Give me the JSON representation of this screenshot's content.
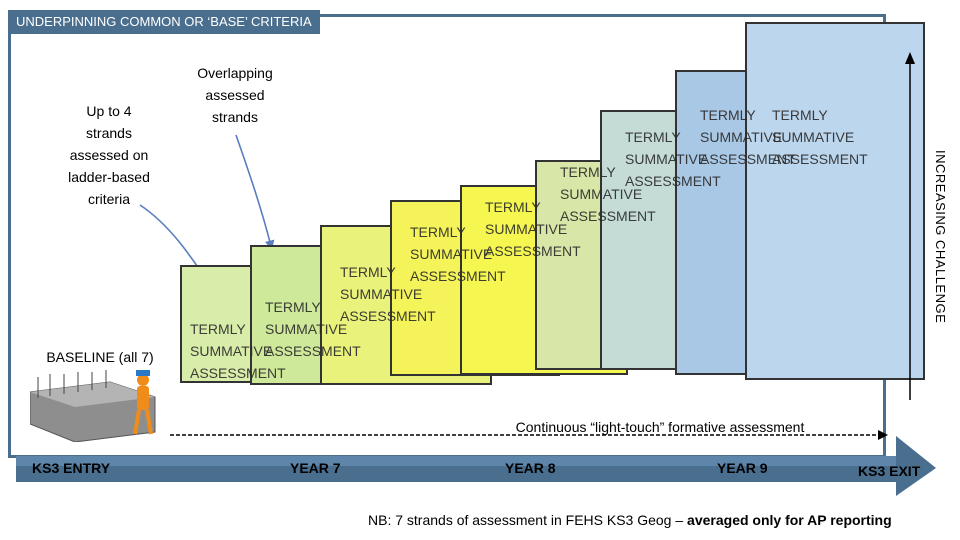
{
  "header": {
    "title": "UNDERPINNING COMMON OR ‘BASE’ CRITERIA"
  },
  "annotations": {
    "left_note_lines": [
      "Up to 4",
      "strands",
      "assessed on",
      "ladder-based",
      "criteria"
    ],
    "overlap_note_lines": [
      "Overlapping",
      "assessed",
      "strands"
    ],
    "baseline": "BASELINE (all 7)",
    "formative": "Continuous “light-touch” formative assessment",
    "challenge_axis": "INCREASING CHALLENGE"
  },
  "panel_text": {
    "line1": "TERMLY",
    "line2": "SUMMATIVE",
    "line3": "ASSESSMENT"
  },
  "panels": [
    {
      "color": "#d9edaa"
    },
    {
      "color": "#cfe99a"
    },
    {
      "color": "#e9f27a"
    },
    {
      "color": "#f4f45a"
    },
    {
      "color": "#f6f650"
    },
    {
      "color": "#d8e7a8"
    },
    {
      "color": "#c5dcd6"
    },
    {
      "color": "#a9c8e6"
    },
    {
      "color": "#bcd6ee"
    }
  ],
  "timeline": {
    "entry": "KS3 ENTRY",
    "year7": "YEAR 7",
    "year8": "YEAR 8",
    "year9": "YEAR 9",
    "exit": "KS3 EXIT"
  },
  "footer": {
    "prefix": "NB: 7 strands of assessment in FEHS KS3 Geog –",
    "bold": "averaged only for AP reporting"
  },
  "colors": {
    "frame": "#4a6e8e",
    "arrow": "#4a6e8e",
    "baseline_fill": "#d9edaa"
  }
}
